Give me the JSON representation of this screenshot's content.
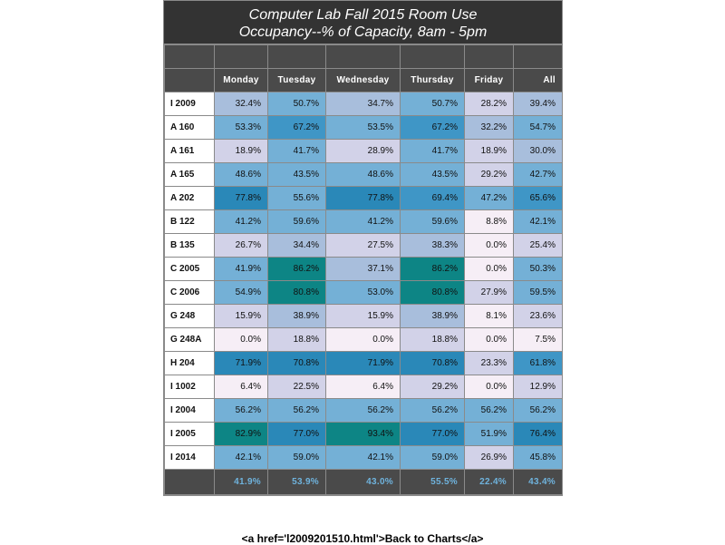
{
  "title_line1": "Computer Lab Fall 2015   Room Use",
  "title_line2": "Occupancy--% of Capacity, 8am - 5pm",
  "back_link_text": "<a href='l2009201510.html'>Back to Charts</a>",
  "colors": {
    "header_bg": "#333333",
    "col_header_bg": "#4a4a4a",
    "total_text": "#6fb3dd",
    "scale": [
      "#f6eef6",
      "#d2d2e8",
      "#a8bedc",
      "#74b0d6",
      "#3f96c6",
      "#2a88b8",
      "#0d8585"
    ]
  },
  "chart_data": {
    "type": "table",
    "columns": [
      "Monday",
      "Tuesday",
      "Wednesday",
      "Thursday",
      "Friday",
      "All"
    ],
    "rows": [
      {
        "label": "I 2009",
        "values": [
          "32.4%",
          "50.7%",
          "34.7%",
          "50.7%",
          "28.2%",
          "39.4%"
        ]
      },
      {
        "label": "A 160",
        "values": [
          "53.3%",
          "67.2%",
          "53.5%",
          "67.2%",
          "32.2%",
          "54.7%"
        ]
      },
      {
        "label": "A 161",
        "values": [
          "18.9%",
          "41.7%",
          "28.9%",
          "41.7%",
          "18.9%",
          "30.0%"
        ]
      },
      {
        "label": "A 165",
        "values": [
          "48.6%",
          "43.5%",
          "48.6%",
          "43.5%",
          "29.2%",
          "42.7%"
        ]
      },
      {
        "label": "A 202",
        "values": [
          "77.8%",
          "55.6%",
          "77.8%",
          "69.4%",
          "47.2%",
          "65.6%"
        ]
      },
      {
        "label": "B 122",
        "values": [
          "41.2%",
          "59.6%",
          "41.2%",
          "59.6%",
          "8.8%",
          "42.1%"
        ]
      },
      {
        "label": "B 135",
        "values": [
          "26.7%",
          "34.4%",
          "27.5%",
          "38.3%",
          "0.0%",
          "25.4%"
        ]
      },
      {
        "label": "C 2005",
        "values": [
          "41.9%",
          "86.2%",
          "37.1%",
          "86.2%",
          "0.0%",
          "50.3%"
        ]
      },
      {
        "label": "C 2006",
        "values": [
          "54.9%",
          "80.8%",
          "53.0%",
          "80.8%",
          "27.9%",
          "59.5%"
        ]
      },
      {
        "label": "G 248",
        "values": [
          "15.9%",
          "38.9%",
          "15.9%",
          "38.9%",
          "8.1%",
          "23.6%"
        ]
      },
      {
        "label": "G 248A",
        "values": [
          "0.0%",
          "18.8%",
          "0.0%",
          "18.8%",
          "0.0%",
          "7.5%"
        ]
      },
      {
        "label": "H 204",
        "values": [
          "71.9%",
          "70.8%",
          "71.9%",
          "70.8%",
          "23.3%",
          "61.8%"
        ]
      },
      {
        "label": "I 1002",
        "values": [
          "6.4%",
          "22.5%",
          "6.4%",
          "29.2%",
          "0.0%",
          "12.9%"
        ]
      },
      {
        "label": "I 2004",
        "values": [
          "56.2%",
          "56.2%",
          "56.2%",
          "56.2%",
          "56.2%",
          "56.2%"
        ]
      },
      {
        "label": "I 2005",
        "values": [
          "82.9%",
          "77.0%",
          "93.4%",
          "77.0%",
          "51.9%",
          "76.4%"
        ]
      },
      {
        "label": "I 2014",
        "values": [
          "42.1%",
          "59.0%",
          "42.1%",
          "59.0%",
          "26.9%",
          "45.8%"
        ]
      }
    ],
    "totals": [
      "41.9%",
      "53.9%",
      "43.0%",
      "55.5%",
      "22.4%",
      "43.4%"
    ]
  }
}
